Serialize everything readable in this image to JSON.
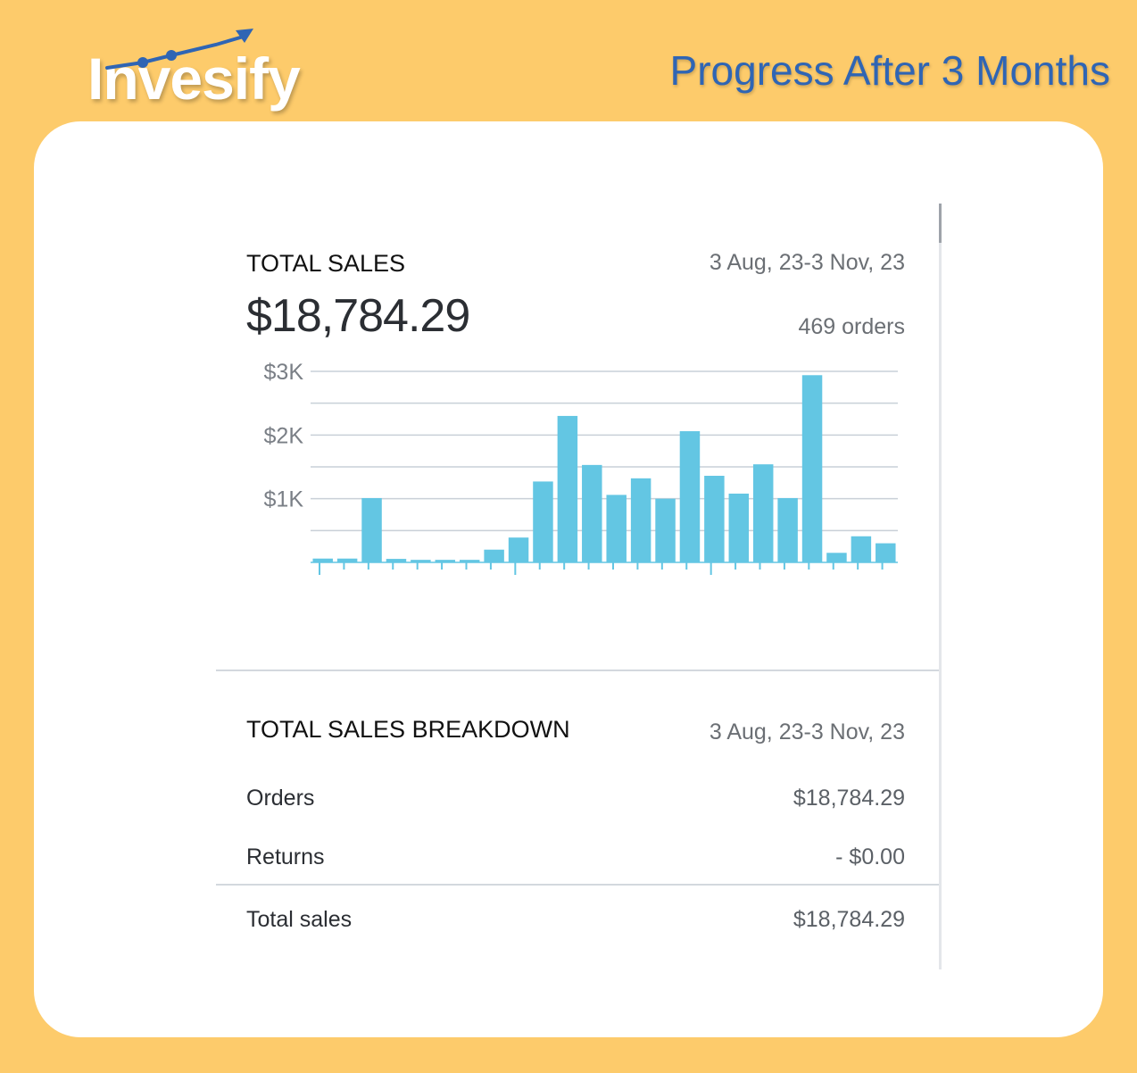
{
  "brand": {
    "name": "Invesify"
  },
  "headline": "Progress After 3 Months",
  "colors": {
    "background": "#FDCB6B",
    "bar": "#63C6E3",
    "brand_blue": "#2F65B4"
  },
  "sales": {
    "label": "TOTAL SALES",
    "date_range": "3 Aug, 23-3 Nov, 23",
    "amount": "$18,784.29",
    "orders": "469 orders"
  },
  "chart_data": {
    "type": "bar",
    "y_ticks": [
      "$3K",
      "$2K",
      "$1K"
    ],
    "ylim": [
      0,
      3000
    ],
    "grid": true,
    "values": [
      60,
      60,
      1010,
      55,
      40,
      40,
      40,
      200,
      390,
      1270,
      2300,
      1530,
      1060,
      1320,
      1000,
      2060,
      1360,
      1080,
      1540,
      1010,
      2940,
      150,
      410,
      300
    ]
  },
  "breakdown": {
    "label": "TOTAL SALES BREAKDOWN",
    "date_range": "3 Aug, 23-3 Nov, 23",
    "rows": [
      {
        "label": "Orders",
        "value": "$18,784.29"
      },
      {
        "label": "Returns",
        "value": "- $0.00"
      }
    ],
    "total": {
      "label": "Total sales",
      "value": "$18,784.29"
    }
  }
}
